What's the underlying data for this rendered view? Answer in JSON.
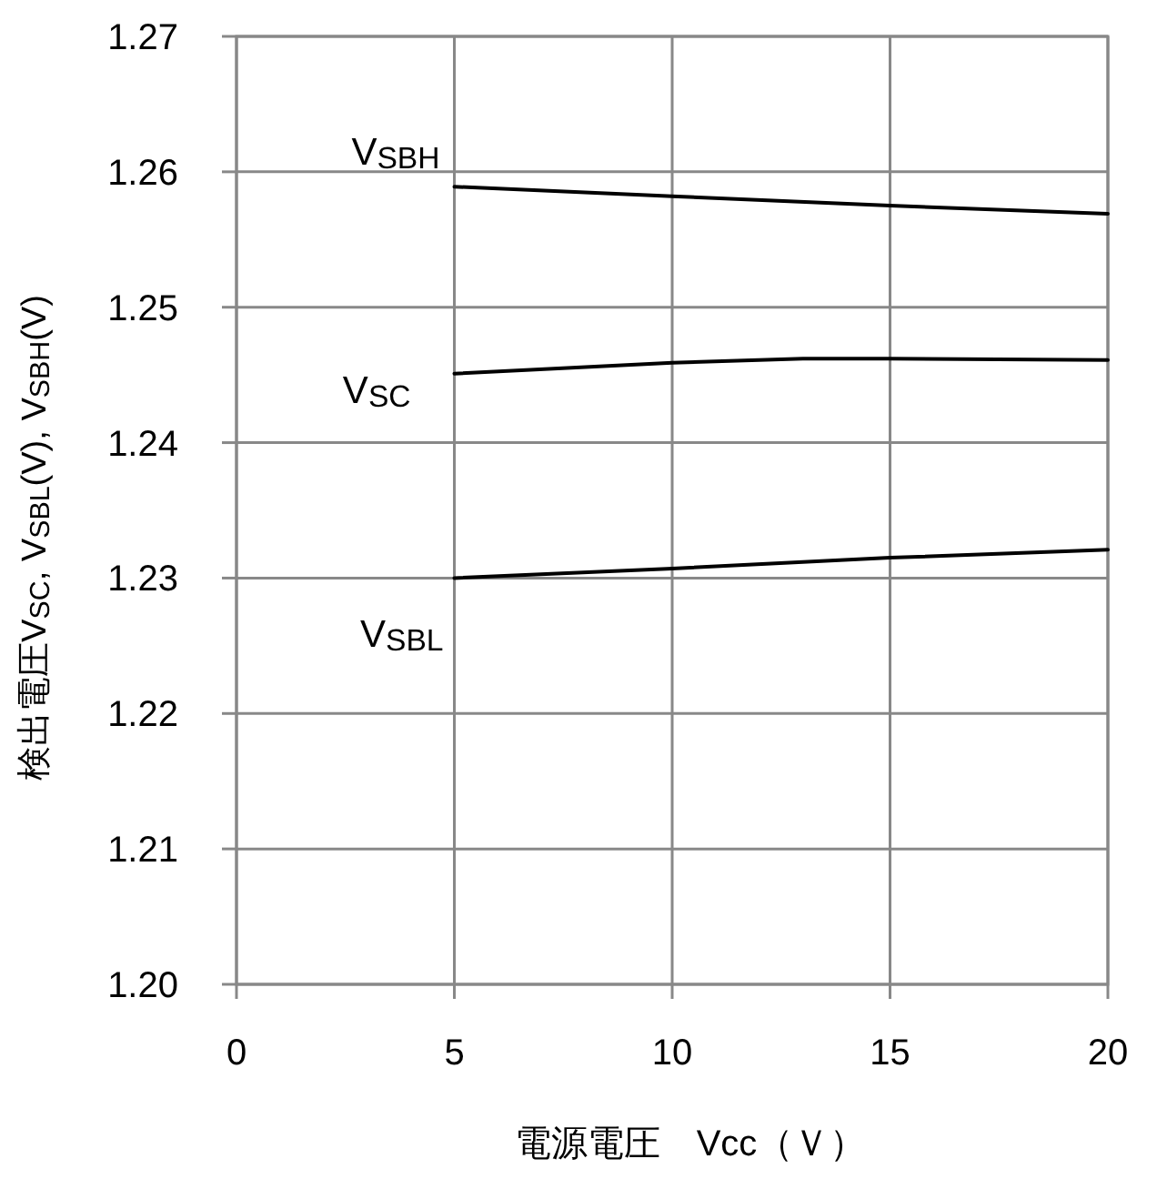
{
  "chart_data": {
    "type": "line",
    "xlabel": "電源電圧　Vcc（Ｖ）",
    "ylabel": "検出電圧V$_{SC}$, V$_{SBL}$(V), V$_{SBH}$(V)",
    "xlim": [
      0,
      20
    ],
    "xticks": [
      0,
      5,
      10,
      15,
      20
    ],
    "ylim": [
      1.2,
      1.27
    ],
    "yticks": [
      {
        "value": 1.2,
        "label": "1.20"
      },
      1.21,
      1.22,
      1.23,
      1.24,
      1.25,
      1.26,
      1.27
    ],
    "grid": true,
    "marker": "none",
    "line_style": "solid",
    "series": [
      {
        "name": "V$_{SBH}$",
        "color": "#000000",
        "x": [
          5,
          10,
          15,
          20
        ],
        "values": [
          1.2589,
          1.2582,
          1.2575,
          1.2569
        ]
      },
      {
        "name": "V$_{SC}$",
        "color": "#000000",
        "x": [
          5,
          10,
          13,
          15,
          20
        ],
        "values": [
          1.2451,
          1.2459,
          1.2462,
          1.2462,
          1.2461
        ]
      },
      {
        "name": "V$_{SBL}$",
        "color": "#000000",
        "x": [
          5,
          10,
          15,
          20
        ],
        "values": [
          1.23,
          1.2307,
          1.2315,
          1.2321
        ]
      }
    ]
  }
}
